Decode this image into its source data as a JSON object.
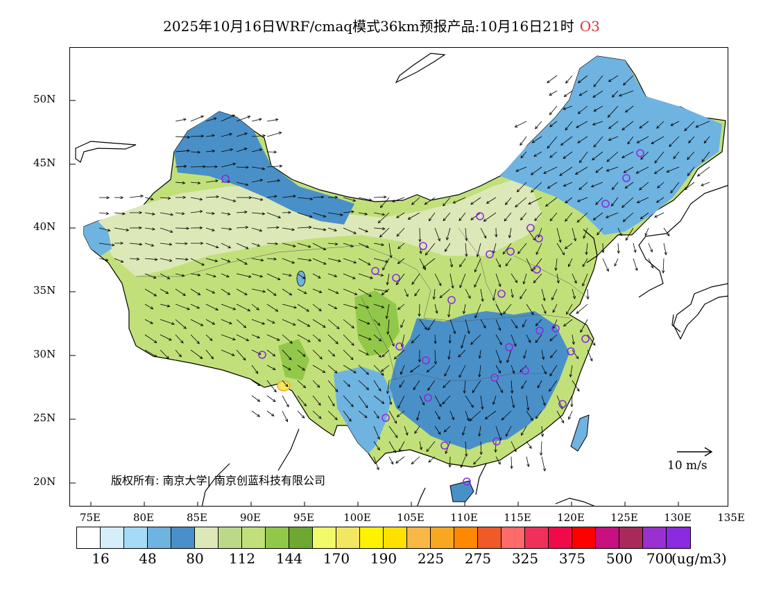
{
  "title": {
    "main": "2025年10月16日WRF/cmaq模式36km预报产品:10月16日21时",
    "pollutant": "O3",
    "pollutant_color": "#e03030"
  },
  "axes": {
    "lat_labels": [
      "50N",
      "45N",
      "40N",
      "35N",
      "30N",
      "25N",
      "20N"
    ],
    "lon_labels": [
      "75E",
      "80E",
      "85E",
      "90E",
      "95E",
      "100E",
      "105E",
      "110E",
      "115E",
      "120E",
      "125E",
      "130E",
      "135E"
    ]
  },
  "copyright": "版权所有: 南京大学| 南京创蓝科技有限公司",
  "wind_reference": "10 m/s",
  "colorbar": {
    "unit": "(ug/m3)",
    "colors": [
      "#ffffff",
      "#d6eefa",
      "#a6dbf5",
      "#6fb3e0",
      "#4a90c8",
      "#dde8b8",
      "#bcd98a",
      "#c2e07a",
      "#92c84a",
      "#6ea832",
      "#f0fa6a",
      "#f3e660",
      "#fff200",
      "#ffe000",
      "#f8b848",
      "#f8a820",
      "#ff8800",
      "#f05a28",
      "#ff6a6a",
      "#f0305a",
      "#f00a4a",
      "#ff0000",
      "#c81080",
      "#a82a5a",
      "#9a30d0",
      "#8a2be2"
    ],
    "labels": [
      "16",
      "48",
      "80",
      "112",
      "144",
      "170",
      "190",
      "225",
      "275",
      "325",
      "375",
      "500",
      "700"
    ]
  },
  "map_colors": {
    "ocean": "#ffffff",
    "coast": "#000000",
    "station_circle": "#8a2be2",
    "wind_arrow": "#000000"
  }
}
